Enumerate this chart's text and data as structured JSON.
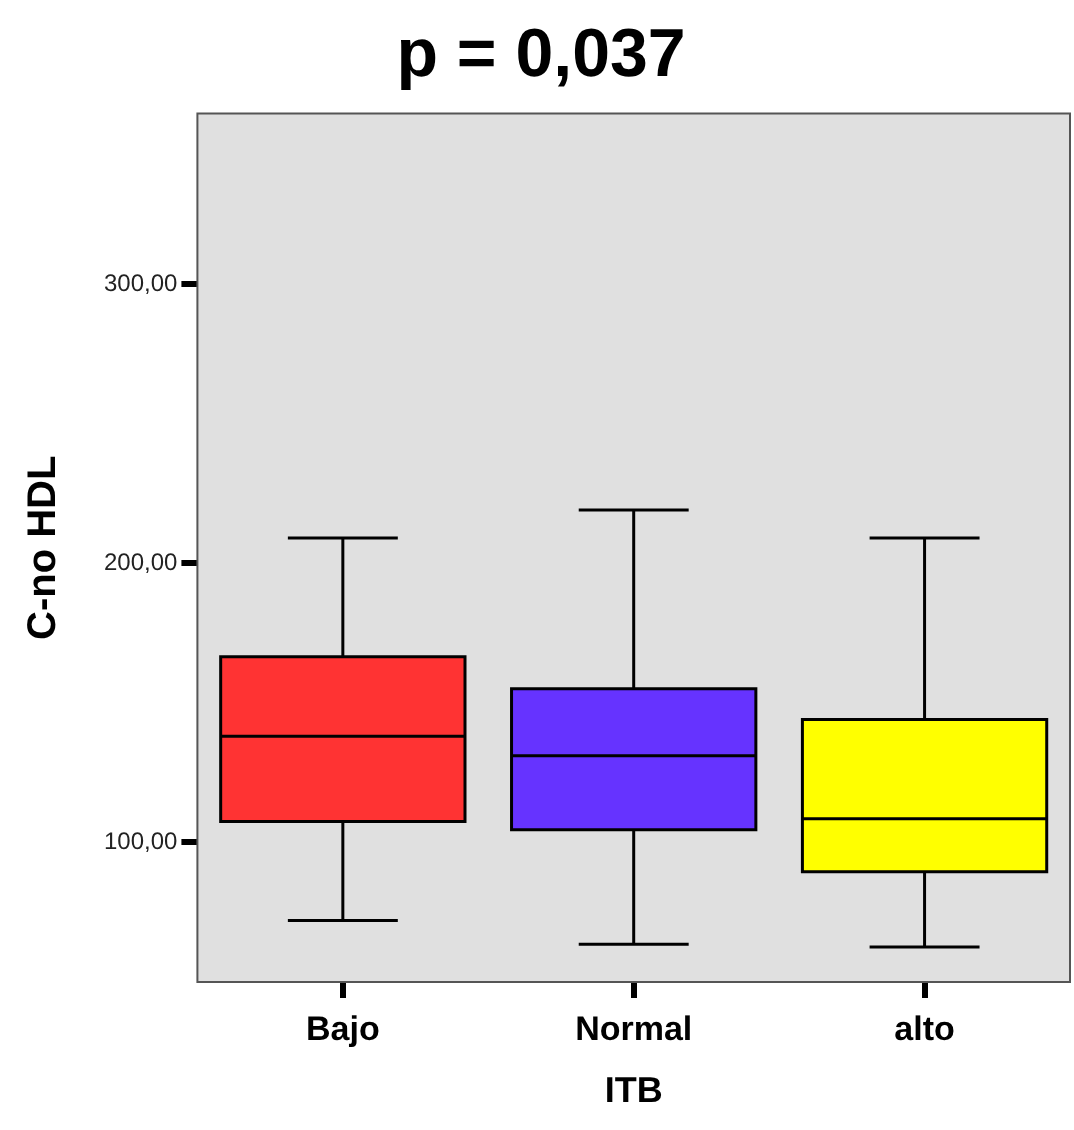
{
  "chart_data": {
    "type": "box",
    "title": "p = 0,037",
    "xlabel": "ITB",
    "ylabel": "C-no HDL",
    "categories": [
      "Bajo",
      "Normal",
      "alto"
    ],
    "colors": [
      "#ff3333",
      "#6633ff",
      "#ffff00"
    ],
    "boxes": [
      {
        "low": 72,
        "q1": 107.5,
        "median": 138,
        "q3": 166.5,
        "high": 209
      },
      {
        "low": 63.5,
        "q1": 104.5,
        "median": 131,
        "q3": 155,
        "high": 219
      },
      {
        "low": 62.5,
        "q1": 89.5,
        "median": 108.5,
        "q3": 144,
        "high": 209
      }
    ],
    "ylim": [
      50,
      361
    ],
    "yticks": [
      {
        "value": 100,
        "label": "100,00"
      },
      {
        "value": 200,
        "label": "200,00"
      },
      {
        "value": 300,
        "label": "300,00"
      }
    ]
  }
}
